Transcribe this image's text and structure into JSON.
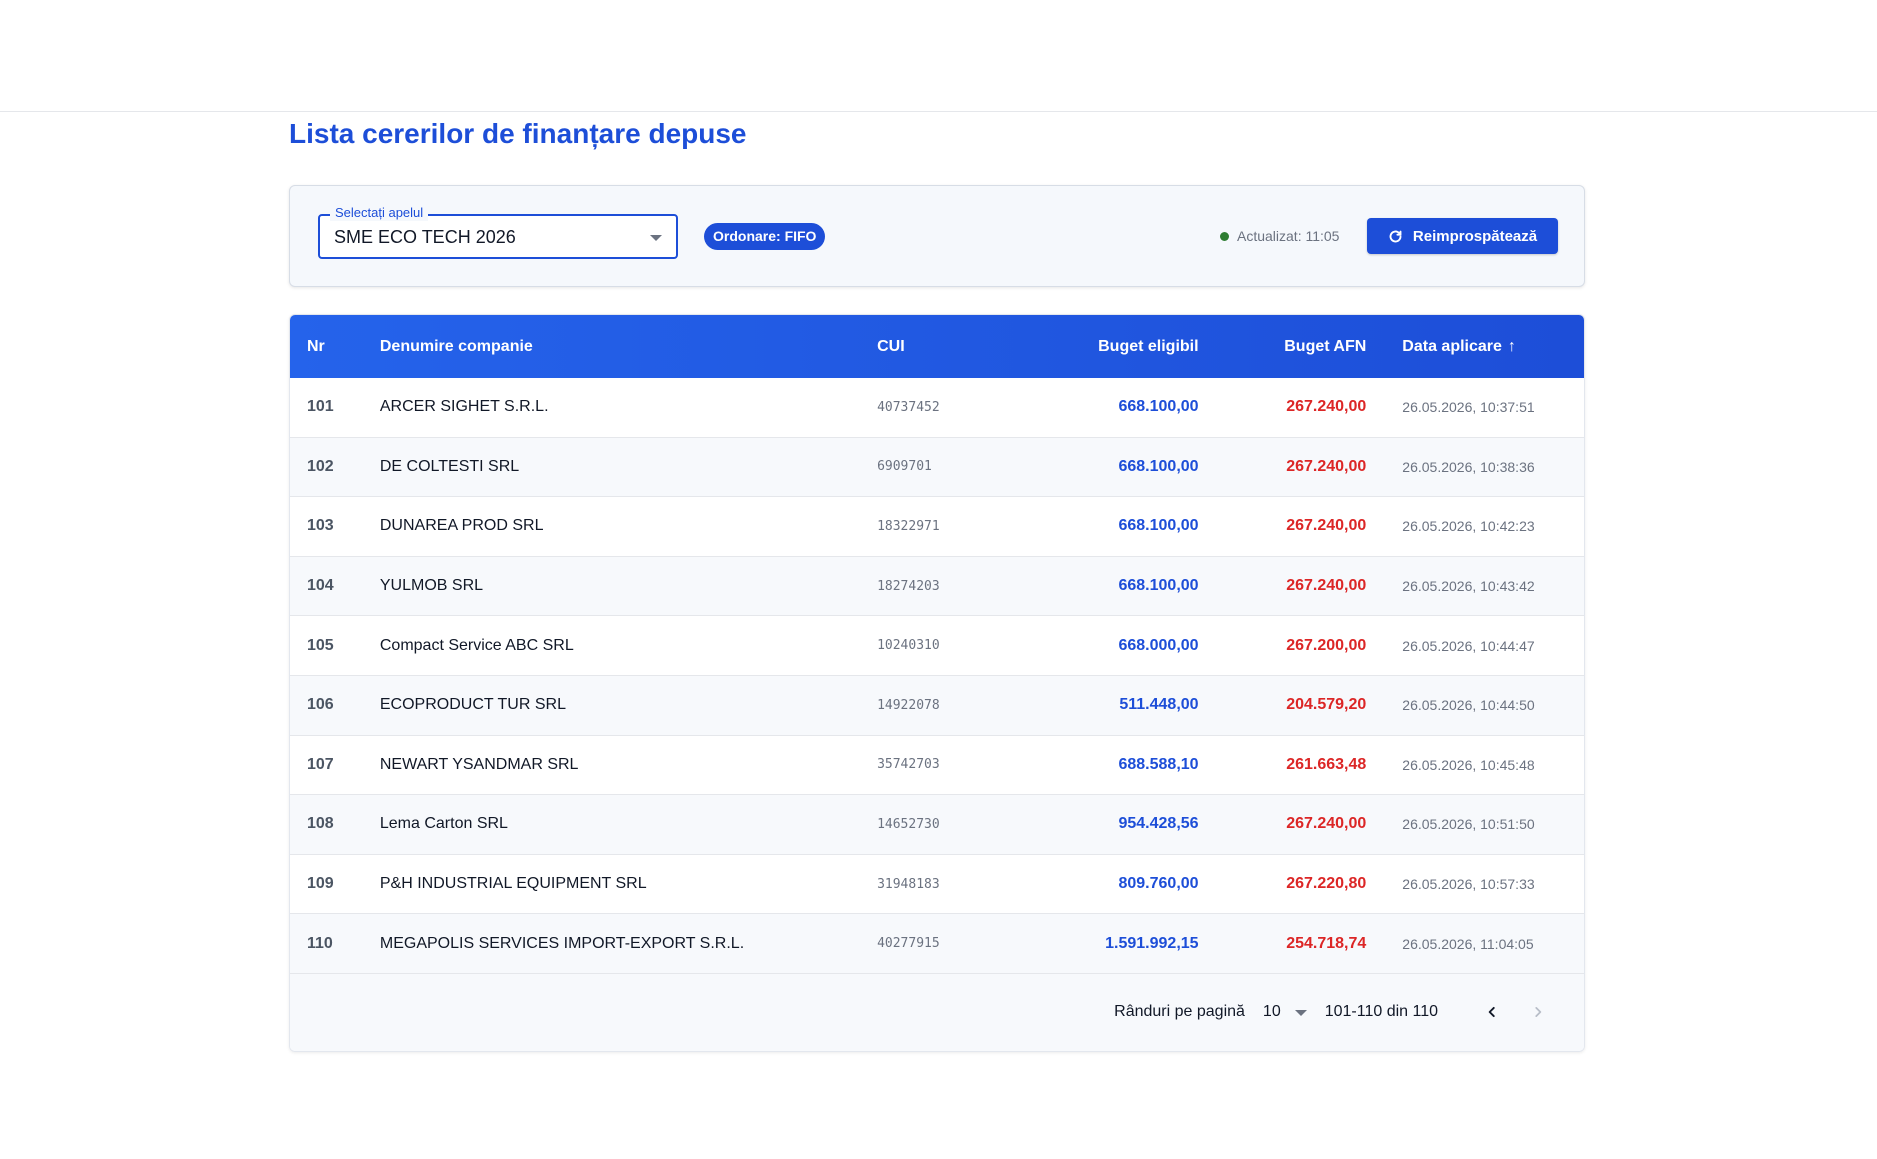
{
  "page": {
    "title": "Lista cererilor de finanțare depuse"
  },
  "filter": {
    "select_label": "Selectați apelul",
    "select_value": "SME ECO TECH 2026",
    "order_badge": "Ordonare: FIFO",
    "status_text": "Actualizat: 11:05",
    "status_color": "#2e7d32",
    "refresh_label": "Reimprospătează",
    "refresh_icon": "refresh-icon"
  },
  "table": {
    "headers": {
      "nr": "Nr",
      "name": "Denumire companie",
      "cui": "CUI",
      "buget_eligibil": "Buget eligibil",
      "buget_afn": "Buget AFN",
      "data_aplicare": "Data aplicare",
      "sort_arrow": "↑"
    },
    "rows": [
      {
        "nr": "101",
        "name": "ARCER SIGHET S.R.L.",
        "cui": "40737452",
        "buget_eligibil": "668.100,00",
        "buget_afn": "267.240,00",
        "data": "26.05.2026, 10:37:51"
      },
      {
        "nr": "102",
        "name": "DE COLTESTI SRL",
        "cui": "6909701",
        "buget_eligibil": "668.100,00",
        "buget_afn": "267.240,00",
        "data": "26.05.2026, 10:38:36"
      },
      {
        "nr": "103",
        "name": "DUNAREA PROD SRL",
        "cui": "18322971",
        "buget_eligibil": "668.100,00",
        "buget_afn": "267.240,00",
        "data": "26.05.2026, 10:42:23"
      },
      {
        "nr": "104",
        "name": "YULMOB SRL",
        "cui": "18274203",
        "buget_eligibil": "668.100,00",
        "buget_afn": "267.240,00",
        "data": "26.05.2026, 10:43:42"
      },
      {
        "nr": "105",
        "name": "Compact Service ABC SRL",
        "cui": "10240310",
        "buget_eligibil": "668.000,00",
        "buget_afn": "267.200,00",
        "data": "26.05.2026, 10:44:47"
      },
      {
        "nr": "106",
        "name": "ECOPRODUCT TUR SRL",
        "cui": "14922078",
        "buget_eligibil": "511.448,00",
        "buget_afn": "204.579,20",
        "data": "26.05.2026, 10:44:50"
      },
      {
        "nr": "107",
        "name": "NEWART YSANDMAR SRL",
        "cui": "35742703",
        "buget_eligibil": "688.588,10",
        "buget_afn": "261.663,48",
        "data": "26.05.2026, 10:45:48"
      },
      {
        "nr": "108",
        "name": "Lema Carton SRL",
        "cui": "14652730",
        "buget_eligibil": "954.428,56",
        "buget_afn": "267.240,00",
        "data": "26.05.2026, 10:51:50"
      },
      {
        "nr": "109",
        "name": "P&H INDUSTRIAL EQUIPMENT SRL",
        "cui": "31948183",
        "buget_eligibil": "809.760,00",
        "buget_afn": "267.220,80",
        "data": "26.05.2026, 10:57:33"
      },
      {
        "nr": "110",
        "name": "MEGAPOLIS SERVICES IMPORT-EXPORT S.R.L.",
        "cui": "40277915",
        "buget_eligibil": "1.591.992,15",
        "buget_afn": "254.718,74",
        "data": "26.05.2026, 11:04:05"
      }
    ]
  },
  "pagination": {
    "rows_per_page_label": "Rânduri pe pagină",
    "rows_per_page_value": "10",
    "range": "101-110 din 110",
    "prev_icon": "chevron-left-icon",
    "next_icon": "chevron-right-icon"
  },
  "colors": {
    "accent": "#1d4ed8",
    "budget_eligible": "#1d4ed8",
    "budget_afn": "#dc2626"
  }
}
